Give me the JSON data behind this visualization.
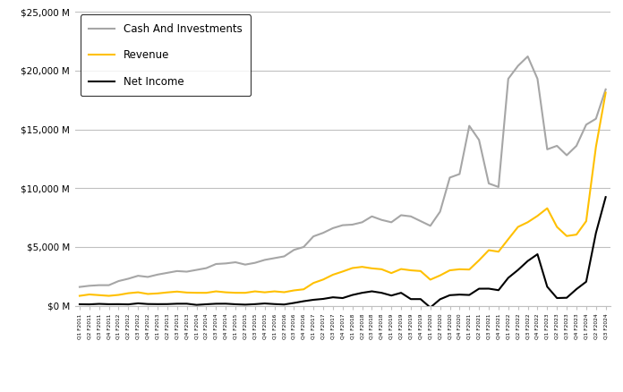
{
  "labels": [
    "Q1 F2011",
    "Q2 F2011",
    "Q3 F2011",
    "Q4 F2011",
    "Q1 F2012",
    "Q2 F2012",
    "Q3 F2012",
    "Q4 F2012",
    "Q1 F2013",
    "Q2 F2013",
    "Q3 F2013",
    "Q4 F2013",
    "Q1 F2014",
    "Q2 F2014",
    "Q3 F2014",
    "Q4 F2014",
    "Q1 F2015",
    "Q2 F2015",
    "Q3 F2015",
    "Q4 F2015",
    "Q1 F2016",
    "Q2 F2016",
    "Q3 F2016",
    "Q4 F2016",
    "Q1 F2017",
    "Q2 F2017",
    "Q3 F2017",
    "Q4 F2017",
    "Q1 F2018",
    "Q2 F2018",
    "Q3 F2018",
    "Q4 F2018",
    "Q1 F2019",
    "Q2 F2019",
    "Q3 F2019",
    "Q4 F2019",
    "Q1 F2020",
    "Q2 F2020",
    "Q3 F2020",
    "Q4 F2020",
    "Q1 F2021",
    "Q2 F2021",
    "Q3 F2021",
    "Q4 F2021",
    "Q1 F2022",
    "Q2 F2022",
    "Q3 F2022",
    "Q4 F2022",
    "Q1 F2023",
    "Q2 F2023",
    "Q3 F2023",
    "Q4 F2023",
    "Q1 F2024",
    "Q2 F2024",
    "Q3 F2024"
  ],
  "revenue": [
    844,
    962,
    903,
    844,
    924,
    1067,
    1145,
    1004,
    1050,
    1136,
    1205,
    1124,
    1103,
    1100,
    1225,
    1143,
    1103,
    1100,
    1225,
    1143,
    1225,
    1153,
    1305,
    1401,
    1937,
    2230,
    2638,
    2911,
    3207,
    3309,
    3181,
    3105,
    2779,
    3123,
    3014,
    2953,
    2220,
    2579,
    3014,
    3105,
    3080,
    3866,
    4726,
    4600,
    5661,
    6704,
    7103,
    7643,
    8290,
    6704,
    5931,
    6051,
    7192,
    13507,
    18120
  ],
  "net_income": [
    131,
    119,
    160,
    131,
    135,
    119,
    206,
    147,
    137,
    141,
    173,
    174,
    76,
    128,
    171,
    175,
    128,
    97,
    136,
    195,
    143,
    107,
    240,
    388,
    507,
    583,
    721,
    655,
    917,
    1101,
    1228,
    1099,
    870,
    1101,
    567,
    567,
    -148,
    552,
    899,
    950,
    917,
    1451,
    1456,
    1325,
    2374,
    3044,
    3807,
    4382,
    1618,
    656,
    680,
    1414,
    2043,
    6188,
    9243
  ],
  "cash_and_investments": [
    1600,
    1700,
    1750,
    1750,
    2100,
    2300,
    2550,
    2450,
    2650,
    2800,
    2950,
    2900,
    3050,
    3200,
    3550,
    3600,
    3700,
    3500,
    3650,
    3900,
    4050,
    4200,
    4750,
    5000,
    5900,
    6200,
    6600,
    6850,
    6900,
    7100,
    7600,
    7300,
    7100,
    7700,
    7600,
    7200,
    6800,
    8000,
    10900,
    11200,
    15300,
    14100,
    10400,
    10100,
    19300,
    20400,
    21200,
    19300,
    13300,
    13600,
    12800,
    13600,
    15400,
    15900,
    18400
  ],
  "revenue_color": "#FFC000",
  "net_income_color": "#000000",
  "cash_color": "#A6A6A6",
  "background_color": "#FFFFFF",
  "grid_color": "#C0C0C0",
  "ylim": [
    0,
    25000
  ],
  "yticks": [
    0,
    5000,
    10000,
    15000,
    20000,
    25000
  ],
  "ytick_labels": [
    "$0 M",
    "$5,000 M",
    "$10,000 M",
    "$15,000 M",
    "$20,000 M",
    "$25,000 M"
  ],
  "legend_labels": [
    "Revenue",
    "Net Income",
    "Cash And Investments"
  ]
}
